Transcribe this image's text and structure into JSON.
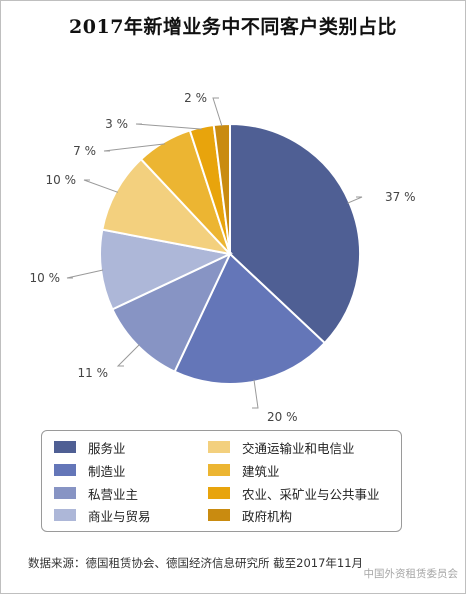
{
  "title": "2017年新增业务中不同客户类别占比",
  "chart_data": {
    "type": "pie",
    "title": "2017年新增业务中不同客户类别占比",
    "legend_position": "bottom",
    "slices": [
      {
        "label": "服务业",
        "value": 37,
        "value_label": "37 %",
        "color": "#4f5f94"
      },
      {
        "label": "制造业",
        "value": 20,
        "value_label": "20 %",
        "color": "#6476b8"
      },
      {
        "label": "私营业主",
        "value": 11,
        "value_label": "11 %",
        "color": "#8794c4"
      },
      {
        "label": "商业与贸易",
        "value": 10,
        "value_label": "10 %",
        "color": "#adb7d8"
      },
      {
        "label": "交通运输业和电信业",
        "value": 10,
        "value_label": "10 %",
        "color": "#f3d07e"
      },
      {
        "label": "建筑业",
        "value": 7,
        "value_label": "7 %",
        "color": "#ecb532"
      },
      {
        "label": "农业、采矿业与公共事业",
        "value": 3,
        "value_label": "3 %",
        "color": "#e8a40c"
      },
      {
        "label": "政府机构",
        "value": 2,
        "value_label": "2 %",
        "color": "#c98b10"
      }
    ]
  },
  "footer": {
    "source": "数据来源：德国租赁协会、德国经济信息研究所    截至2017年11月",
    "watermark": "中国外资租赁委员会"
  }
}
